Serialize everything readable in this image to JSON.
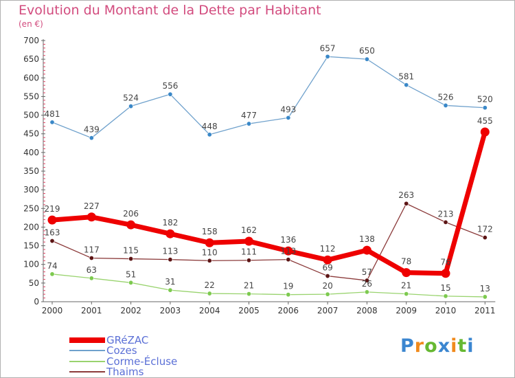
{
  "title": "Evolution du Montant de la Dette par Habitant",
  "unit": "(en €)",
  "chart_data": {
    "type": "line",
    "title": "Evolution du Montant de la Dette par Habitant",
    "subtitle": "(en €)",
    "xlabel": "",
    "ylabel": "",
    "categories": [
      "2000",
      "2001",
      "2002",
      "2003",
      "2004",
      "2005",
      "2006",
      "2007",
      "2008",
      "2009",
      "2010",
      "2011"
    ],
    "ylim": [
      0,
      700
    ],
    "yticks": [
      0,
      50,
      100,
      150,
      200,
      250,
      300,
      350,
      400,
      450,
      500,
      550,
      600,
      650,
      700
    ],
    "grid": false,
    "legend_position": "bottom-left",
    "series": [
      {
        "name": "Cozes",
        "color": "#6fa1cc",
        "marker": "#3a88c8",
        "values": [
          481,
          439,
          524,
          556,
          448,
          477,
          493,
          657,
          650,
          581,
          526,
          520
        ]
      },
      {
        "name": "Corme-Écluse",
        "color": "#99d36e",
        "marker": "#7dca4f",
        "values": [
          74,
          63,
          51,
          31,
          22,
          21,
          19,
          20,
          26,
          21,
          15,
          13
        ]
      },
      {
        "name": "Thaims",
        "color": "#8b3a3a",
        "marker": "#5c1515",
        "values": [
          163,
          117,
          115,
          113,
          110,
          111,
          113,
          69,
          57,
          263,
          213,
          172
        ]
      },
      {
        "name": "GRéZAC",
        "color": "#ee0000",
        "marker": "#ee0000",
        "values": [
          219,
          227,
          206,
          182,
          158,
          162,
          136,
          112,
          138,
          78,
          76,
          455
        ]
      }
    ]
  },
  "legend": [
    {
      "label": "GRéZAC",
      "color": "#ee0000",
      "thick": true
    },
    {
      "label": "Cozes",
      "color": "#6fa1cc",
      "thick": false
    },
    {
      "label": "Corme-Écluse",
      "color": "#99d36e",
      "thick": false
    },
    {
      "label": "Thaims",
      "color": "#8b3a3a",
      "thick": false
    }
  ],
  "logo": {
    "letters": [
      "P",
      "r",
      "o",
      "x",
      "i",
      "t",
      "i"
    ],
    "colors": [
      "#3b86d0",
      "#f08a1c",
      "#66b832",
      "#3b86d0",
      "#f08a1c",
      "#66b832",
      "#3b86d0"
    ]
  }
}
